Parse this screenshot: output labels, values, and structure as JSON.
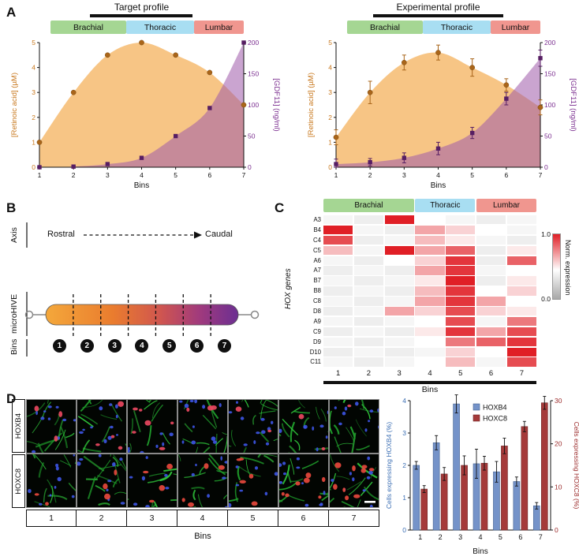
{
  "panel_labels": {
    "A": "A",
    "B": "B",
    "C": "C",
    "D": "D"
  },
  "regions": [
    {
      "label": "Brachial",
      "color": "#a5d693"
    },
    {
      "label": "Thoracic",
      "color": "#a8def2"
    },
    {
      "label": "Lumbar",
      "color": "#f0968f"
    }
  ],
  "panelB": {
    "axis_label": "Axis",
    "rostral": "Rostral",
    "caudal": "Caudal",
    "device_label": "microHIVE",
    "bins_label": "Bins",
    "bin_numbers": [
      "1",
      "2",
      "3",
      "4",
      "5",
      "6",
      "7"
    ]
  },
  "panelC": {
    "genes_axis_label": "HOX genes",
    "bins_label": "Bins",
    "colorbar_title": "Norm. expression",
    "colorbar_max": "1.0",
    "colorbar_min": "0.0"
  },
  "panelD": {
    "row_labels": [
      "HOXB4",
      "HOXC8"
    ],
    "bin_labels": [
      "1",
      "2",
      "3",
      "4",
      "5",
      "6",
      "7"
    ],
    "bins_label": "Bins"
  },
  "chart_data": [
    {
      "id": "target_profile",
      "type": "area",
      "title": "Target profile",
      "xlabel": "Bins",
      "x": [
        1,
        2,
        3,
        4,
        5,
        6,
        7
      ],
      "ylim_left": [
        0,
        5
      ],
      "yticks_left": [
        0,
        1,
        2,
        3,
        4,
        5
      ],
      "ylim_right": [
        0,
        200
      ],
      "yticks_right": [
        0,
        50,
        100,
        150,
        200
      ],
      "series": [
        {
          "name": "[Retinoic acid] (µM)",
          "axis": "left",
          "color": "#c8781e",
          "marker_color": "#a9651a",
          "fill": "rgba(244,178,92,0.75)",
          "values": [
            1.0,
            3.0,
            4.5,
            5.0,
            4.5,
            3.8,
            2.5
          ]
        },
        {
          "name": "[GDF11] (ng/ml)",
          "axis": "right",
          "color": "#7a2d8f",
          "marker_color": "#571e63",
          "fill": "rgba(158,90,170,0.55)",
          "values": [
            0,
            1,
            5,
            15,
            50,
            95,
            200
          ]
        }
      ]
    },
    {
      "id": "experimental_profile",
      "type": "area",
      "title": "Experimental profile",
      "xlabel": "Bins",
      "x": [
        1,
        2,
        3,
        4,
        5,
        6,
        7
      ],
      "ylim_left": [
        0,
        5
      ],
      "yticks_left": [
        0,
        1,
        2,
        3,
        4,
        5
      ],
      "ylim_right": [
        0,
        200
      ],
      "yticks_right": [
        0,
        50,
        100,
        150,
        200
      ],
      "series": [
        {
          "name": "[Retinoic acid] (µM)",
          "axis": "left",
          "color": "#c8781e",
          "marker_color": "#a9651a",
          "fill": "rgba(244,178,92,0.75)",
          "values": [
            1.2,
            3.0,
            4.2,
            4.6,
            4.0,
            3.3,
            2.4
          ],
          "errors": [
            0.3,
            0.45,
            0.3,
            0.3,
            0.35,
            0.25,
            0.3
          ]
        },
        {
          "name": "[GDF11] (ng/ml)",
          "axis": "right",
          "color": "#7a2d8f",
          "marker_color": "#571e63",
          "fill": "rgba(158,90,170,0.55)",
          "values": [
            5,
            8,
            15,
            30,
            55,
            110,
            175
          ],
          "errors": [
            8,
            6,
            8,
            10,
            9,
            10,
            13
          ]
        }
      ]
    },
    {
      "id": "hox_heatmap",
      "type": "heatmap",
      "rows": [
        "A3",
        "B4",
        "C4",
        "C5",
        "A6",
        "A7",
        "B7",
        "B8",
        "C8",
        "D8",
        "A9",
        "C9",
        "D9",
        "D10",
        "C11"
      ],
      "cols": [
        "1",
        "2",
        "3",
        "4",
        "5",
        "6",
        "7"
      ],
      "xlabel": "Bins",
      "colormap": {
        "high": "#e01f26",
        "mid": "#ffffff",
        "low": "#a8a8a8"
      },
      "values": [
        [
          0.45,
          0.4,
          1.0,
          0.5,
          0.45,
          0.4,
          0.45
        ],
        [
          1.0,
          0.45,
          0.4,
          0.7,
          0.6,
          0.5,
          0.45
        ],
        [
          0.9,
          0.4,
          0.45,
          0.65,
          0.55,
          0.45,
          0.4
        ],
        [
          0.65,
          0.45,
          1.0,
          0.7,
          0.85,
          0.4,
          0.55
        ],
        [
          0.45,
          0.4,
          0.5,
          0.6,
          0.95,
          0.4,
          0.85
        ],
        [
          0.4,
          0.45,
          0.4,
          0.7,
          0.95,
          0.45,
          0.5
        ],
        [
          0.45,
          0.4,
          0.45,
          0.55,
          1.0,
          0.4,
          0.55
        ],
        [
          0.4,
          0.45,
          0.4,
          0.65,
          0.95,
          0.5,
          0.6
        ],
        [
          0.45,
          0.4,
          0.45,
          0.7,
          0.95,
          0.7,
          0.5
        ],
        [
          0.4,
          0.45,
          0.7,
          0.6,
          0.9,
          0.6,
          0.55
        ],
        [
          0.45,
          0.4,
          0.45,
          0.5,
          0.9,
          0.45,
          0.8
        ],
        [
          0.4,
          0.45,
          0.4,
          0.55,
          0.95,
          0.7,
          0.9
        ],
        [
          0.45,
          0.4,
          0.45,
          0.5,
          0.8,
          0.85,
          0.95
        ],
        [
          0.4,
          0.45,
          0.4,
          0.45,
          0.6,
          0.5,
          1.0
        ],
        [
          0.45,
          0.4,
          0.45,
          0.5,
          0.65,
          0.45,
          0.9
        ]
      ]
    },
    {
      "id": "hox_expression_bars",
      "type": "bar",
      "categories": [
        "1",
        "2",
        "3",
        "4",
        "5",
        "6",
        "7"
      ],
      "xlabel": "Bins",
      "ylim_left": [
        0,
        4
      ],
      "yticks_left": [
        0,
        1,
        2,
        3,
        4
      ],
      "ylim_right": [
        0,
        30
      ],
      "yticks_right": [
        0,
        10,
        20,
        30
      ],
      "series": [
        {
          "name": "HOXB4",
          "axis": "left",
          "color": "#7593c9",
          "edge": "#44618f",
          "label_color": "#3c6fb4",
          "ylabel": "Cells expressing HOXB4 (%)",
          "values": [
            2.0,
            2.7,
            3.9,
            2.05,
            1.8,
            1.5,
            0.75
          ],
          "errors": [
            0.12,
            0.22,
            0.28,
            0.45,
            0.32,
            0.14,
            0.1
          ]
        },
        {
          "name": "HOXC8",
          "axis": "right",
          "color": "#a53a3a",
          "edge": "#6e2424",
          "label_color": "#9c2c2c",
          "ylabel": "Cells expressing HOXC8 (%)",
          "values": [
            9.5,
            13,
            15,
            15.5,
            19.5,
            24,
            29.5
          ],
          "errors": [
            0.8,
            1.5,
            2.2,
            1.6,
            1.8,
            1.2,
            1.5
          ]
        }
      ]
    }
  ]
}
